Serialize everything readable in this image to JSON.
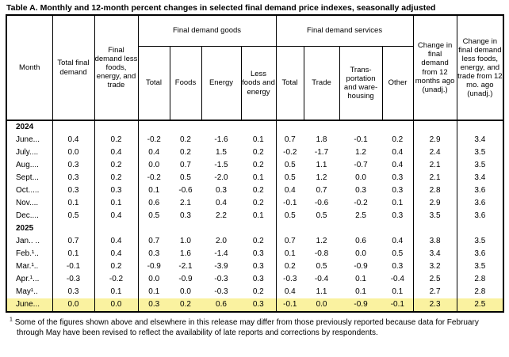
{
  "title": "Table A. Monthly and 12-month percent changes in selected final demand price indexes, seasonally adjusted",
  "colors": {
    "row_highlight": "#faf2a0",
    "text": "#000000",
    "background": "#ffffff"
  },
  "table": {
    "header": {
      "month": "Month",
      "total_final_demand": "Total final demand",
      "less_fet": "Final demand less foods, energy, and trade",
      "goods_group": "Final demand goods",
      "services_group": "Final demand services",
      "goods_cols": [
        "Total",
        "Foods",
        "Energy",
        "Less foods and energy"
      ],
      "services_cols": [
        "Total",
        "Trade",
        "Trans- portation and ware- housing",
        "Other"
      ],
      "change_12mo": "Change in final demand from 12 months ago (unadj.)",
      "change_12mo_less_fet": "Change in final demand less foods, energy, and trade from 12 mo. ago (unadj.)"
    },
    "rows": [
      {
        "type": "year",
        "label": "2024"
      },
      {
        "type": "data",
        "label": "June...",
        "values": [
          "0.4",
          "0.2",
          "-0.2",
          "0.2",
          "-1.6",
          "0.1",
          "0.7",
          "1.8",
          "-0.1",
          "0.2",
          "2.9",
          "3.4"
        ]
      },
      {
        "type": "data",
        "label": "July....",
        "values": [
          "0.0",
          "0.4",
          "0.4",
          "0.2",
          "1.5",
          "0.2",
          "-0.2",
          "-1.7",
          "1.2",
          "0.4",
          "2.4",
          "3.5"
        ]
      },
      {
        "type": "data",
        "label": "Aug....",
        "values": [
          "0.3",
          "0.2",
          "0.0",
          "0.7",
          "-1.5",
          "0.2",
          "0.5",
          "1.1",
          "-0.7",
          "0.4",
          "2.1",
          "3.5"
        ]
      },
      {
        "type": "data",
        "label": "Sept...",
        "values": [
          "0.3",
          "0.2",
          "-0.2",
          "0.5",
          "-2.0",
          "0.1",
          "0.5",
          "1.2",
          "0.0",
          "0.3",
          "2.1",
          "3.4"
        ]
      },
      {
        "type": "data",
        "label": "Oct.....",
        "values": [
          "0.3",
          "0.3",
          "0.1",
          "-0.6",
          "0.3",
          "0.2",
          "0.4",
          "0.7",
          "0.3",
          "0.3",
          "2.8",
          "3.6"
        ]
      },
      {
        "type": "data",
        "label": "Nov....",
        "values": [
          "0.1",
          "0.1",
          "0.6",
          "2.1",
          "0.4",
          "0.2",
          "-0.1",
          "-0.6",
          "-0.2",
          "0.1",
          "2.9",
          "3.6"
        ]
      },
      {
        "type": "data",
        "label": "Dec....",
        "values": [
          "0.5",
          "0.4",
          "0.5",
          "0.3",
          "2.2",
          "0.1",
          "0.5",
          "0.5",
          "2.5",
          "0.3",
          "3.5",
          "3.6"
        ]
      },
      {
        "type": "year",
        "label": "2025"
      },
      {
        "type": "data",
        "label": "Jan.. ..",
        "values": [
          "0.7",
          "0.4",
          "0.7",
          "1.0",
          "2.0",
          "0.2",
          "0.7",
          "1.2",
          "0.6",
          "0.4",
          "3.8",
          "3.5"
        ]
      },
      {
        "type": "data",
        "label": "Feb.¹..",
        "values": [
          "0.1",
          "0.4",
          "0.3",
          "1.6",
          "-1.4",
          "0.3",
          "0.1",
          "-0.8",
          "0.0",
          "0.5",
          "3.4",
          "3.6"
        ]
      },
      {
        "type": "data",
        "label": "Mar.¹..",
        "values": [
          "-0.1",
          "0.2",
          "-0.9",
          "-2.1",
          "-3.9",
          "0.3",
          "0.2",
          "0.5",
          "-0.9",
          "0.3",
          "3.2",
          "3.5"
        ]
      },
      {
        "type": "data",
        "label": "Apr.¹...",
        "values": [
          "-0.3",
          "-0.2",
          "0.0",
          "-0.9",
          "-0.3",
          "0.3",
          "-0.3",
          "-0.4",
          "0.1",
          "-0.4",
          "2.5",
          "2.8"
        ]
      },
      {
        "type": "data",
        "label": "May¹..",
        "values": [
          "0.3",
          "0.1",
          "0.1",
          "0.0",
          "-0.3",
          "0.2",
          "0.4",
          "1.1",
          "0.1",
          "0.1",
          "2.7",
          "2.8"
        ]
      },
      {
        "type": "data",
        "label": "June...",
        "highlight": true,
        "values": [
          "0.0",
          "0.0",
          "0.3",
          "0.2",
          "0.6",
          "0.3",
          "-0.1",
          "0.0",
          "-0.9",
          "-0.1",
          "2.3",
          "2.5"
        ]
      }
    ]
  },
  "footnote_marker": "1",
  "footnote": "Some of the figures shown above and elsewhere in this release may differ from those previously reported because data for February through May have been revised to reflect the availability of late reports and corrections by respondents."
}
